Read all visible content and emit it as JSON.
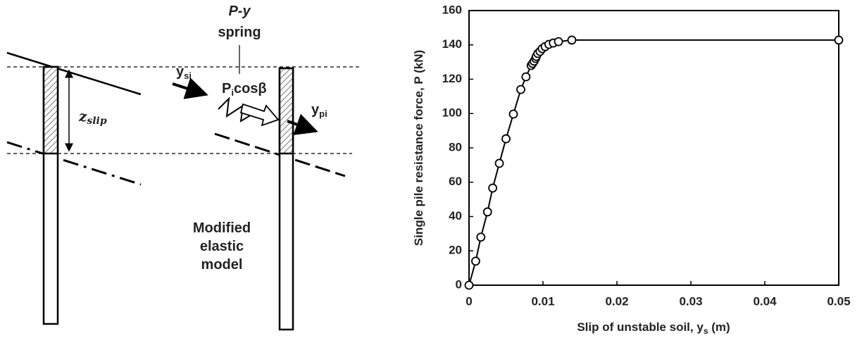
{
  "diagram": {
    "spring_top": "P-y",
    "spring_bottom": "spring",
    "ysi": {
      "main": "y",
      "sub": "si"
    },
    "force": {
      "main": "P",
      "sub": "i",
      "rest": "cosβ"
    },
    "ypi": {
      "main": "y",
      "sub": "pi"
    },
    "zslip": {
      "main": "z",
      "sub": "slip"
    },
    "model": [
      "Modified",
      "elastic",
      "model"
    ]
  },
  "chart_data": {
    "type": "line",
    "xlabel": {
      "main": "Slip of unstable soil, y",
      "sub": "s",
      "rest": " (m)"
    },
    "ylabel": "Single pile resistance force, P (kN)",
    "x": [
      0,
      0.0009,
      0.0016,
      0.0025,
      0.0032,
      0.0041,
      0.005,
      0.006,
      0.007,
      0.0077,
      0.0084,
      0.0086,
      0.0088,
      0.009,
      0.0091,
      0.0093,
      0.0096,
      0.0099,
      0.0103,
      0.0108,
      0.0114,
      0.0121,
      0.0139,
      0.05
    ],
    "series": [
      {
        "color": "#000000",
        "values": [
          0,
          14,
          28,
          42.7,
          56.6,
          71,
          85.3,
          99.7,
          114,
          121.4,
          128,
          129.2,
          130.5,
          132.1,
          133.3,
          135,
          136.2,
          137.8,
          139,
          140.3,
          141.1,
          141.9,
          142.8,
          142.8
        ]
      }
    ],
    "xlim": [
      0,
      0.05
    ],
    "xticks": [
      0,
      0.01,
      0.02,
      0.03,
      0.04,
      0.05
    ],
    "ylim": [
      0,
      160
    ],
    "yticks": [
      0,
      20,
      40,
      60,
      80,
      100,
      120,
      140,
      160
    ],
    "grid": false
  }
}
